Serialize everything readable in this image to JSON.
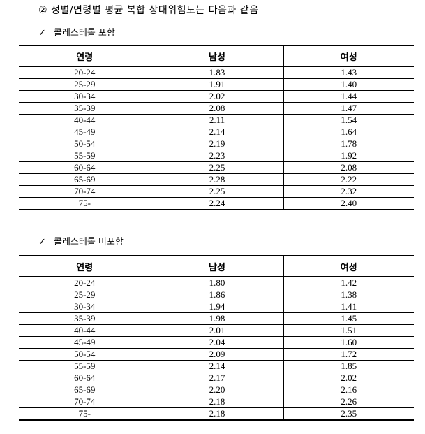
{
  "heading": "② 성별/연령별 평균 복합 상대위험도는 다음과 같음",
  "sections": [
    {
      "check": "✓",
      "title": "콜레스테롤 포함",
      "headers": [
        "연령",
        "남성",
        "여성"
      ],
      "rows": [
        [
          "20-24",
          "1.83",
          "1.43"
        ],
        [
          "25-29",
          "1.91",
          "1.40"
        ],
        [
          "30-34",
          "2.02",
          "1.44"
        ],
        [
          "35-39",
          "2.08",
          "1.47"
        ],
        [
          "40-44",
          "2.11",
          "1.54"
        ],
        [
          "45-49",
          "2.14",
          "1.64"
        ],
        [
          "50-54",
          "2.19",
          "1.78"
        ],
        [
          "55-59",
          "2.23",
          "1.92"
        ],
        [
          "60-64",
          "2.25",
          "2.08"
        ],
        [
          "65-69",
          "2.28",
          "2.22"
        ],
        [
          "70-74",
          "2.25",
          "2.32"
        ],
        [
          "75-",
          "2.24",
          "2.40"
        ]
      ]
    },
    {
      "check": "✓",
      "title": "콜레스테롤 미포함",
      "headers": [
        "연령",
        "남성",
        "여성"
      ],
      "rows": [
        [
          "20-24",
          "1.80",
          "1.42"
        ],
        [
          "25-29",
          "1.86",
          "1.38"
        ],
        [
          "30-34",
          "1.94",
          "1.41"
        ],
        [
          "35-39",
          "1.98",
          "1.45"
        ],
        [
          "40-44",
          "2.01",
          "1.51"
        ],
        [
          "45-49",
          "2.04",
          "1.60"
        ],
        [
          "50-54",
          "2.09",
          "1.72"
        ],
        [
          "55-59",
          "2.14",
          "1.85"
        ],
        [
          "60-64",
          "2.17",
          "2.02"
        ],
        [
          "65-69",
          "2.20",
          "2.16"
        ],
        [
          "70-74",
          "2.18",
          "2.26"
        ],
        [
          "75-",
          "2.18",
          "2.35"
        ]
      ]
    }
  ]
}
